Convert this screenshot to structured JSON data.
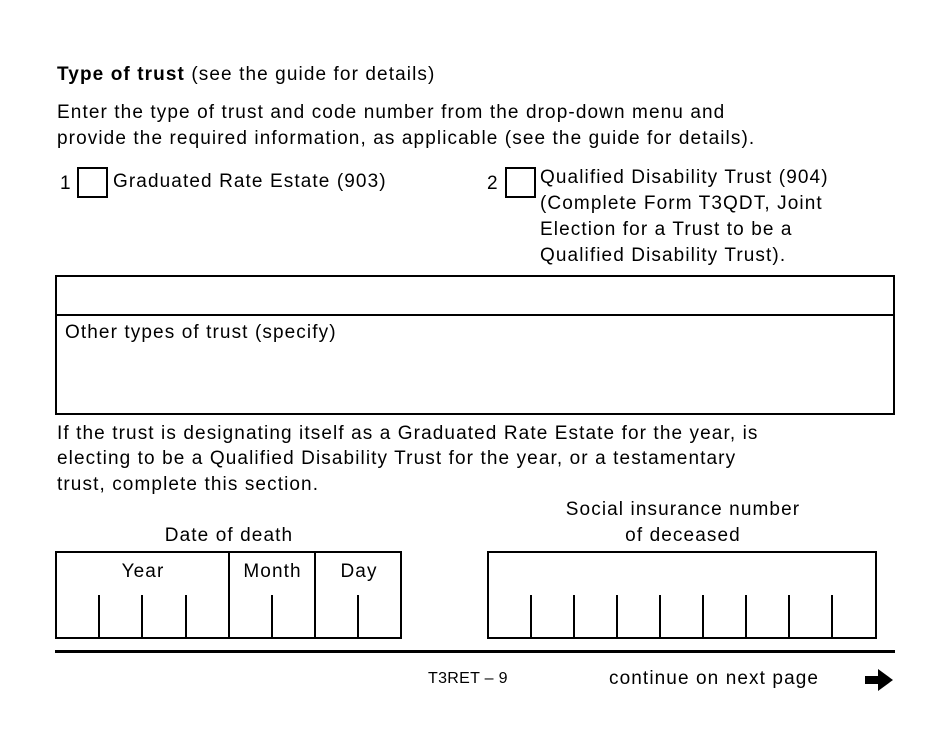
{
  "heading": {
    "bold": "Type of trust",
    "rest": " (see the guide for details)"
  },
  "intro": [
    "Enter the type of trust and code number from the drop-down menu and",
    "provide the required information, as applicable (see the guide for details)."
  ],
  "options": [
    {
      "number": "1",
      "lines": [
        "Graduated Rate Estate (903)"
      ],
      "checked": false
    },
    {
      "number": "2",
      "lines": [
        "Qualified Disability Trust (904)",
        "(Complete Form T3QDT, Joint",
        "Election for a Trust to be a",
        "Qualified Disability Trust)."
      ],
      "checked": false
    }
  ],
  "dropdown_value": "",
  "other_label": "Other types of trust (specify)",
  "other_value": "",
  "note": [
    "If the trust is designating itself as a Graduated Rate Estate for the year, is",
    "electing to be a Qualified Disability Trust for the year, or a testamentary",
    "trust, complete this section."
  ],
  "date_of_death": {
    "label": "Date of death",
    "year": "Year",
    "month": "Month",
    "day": "Day"
  },
  "sin": {
    "label": [
      "Social insurance number",
      "of deceased"
    ]
  },
  "footer": {
    "page_code": "T3RET – 9",
    "continue": "continue on next page",
    "arrow_icon": "right-arrow"
  }
}
